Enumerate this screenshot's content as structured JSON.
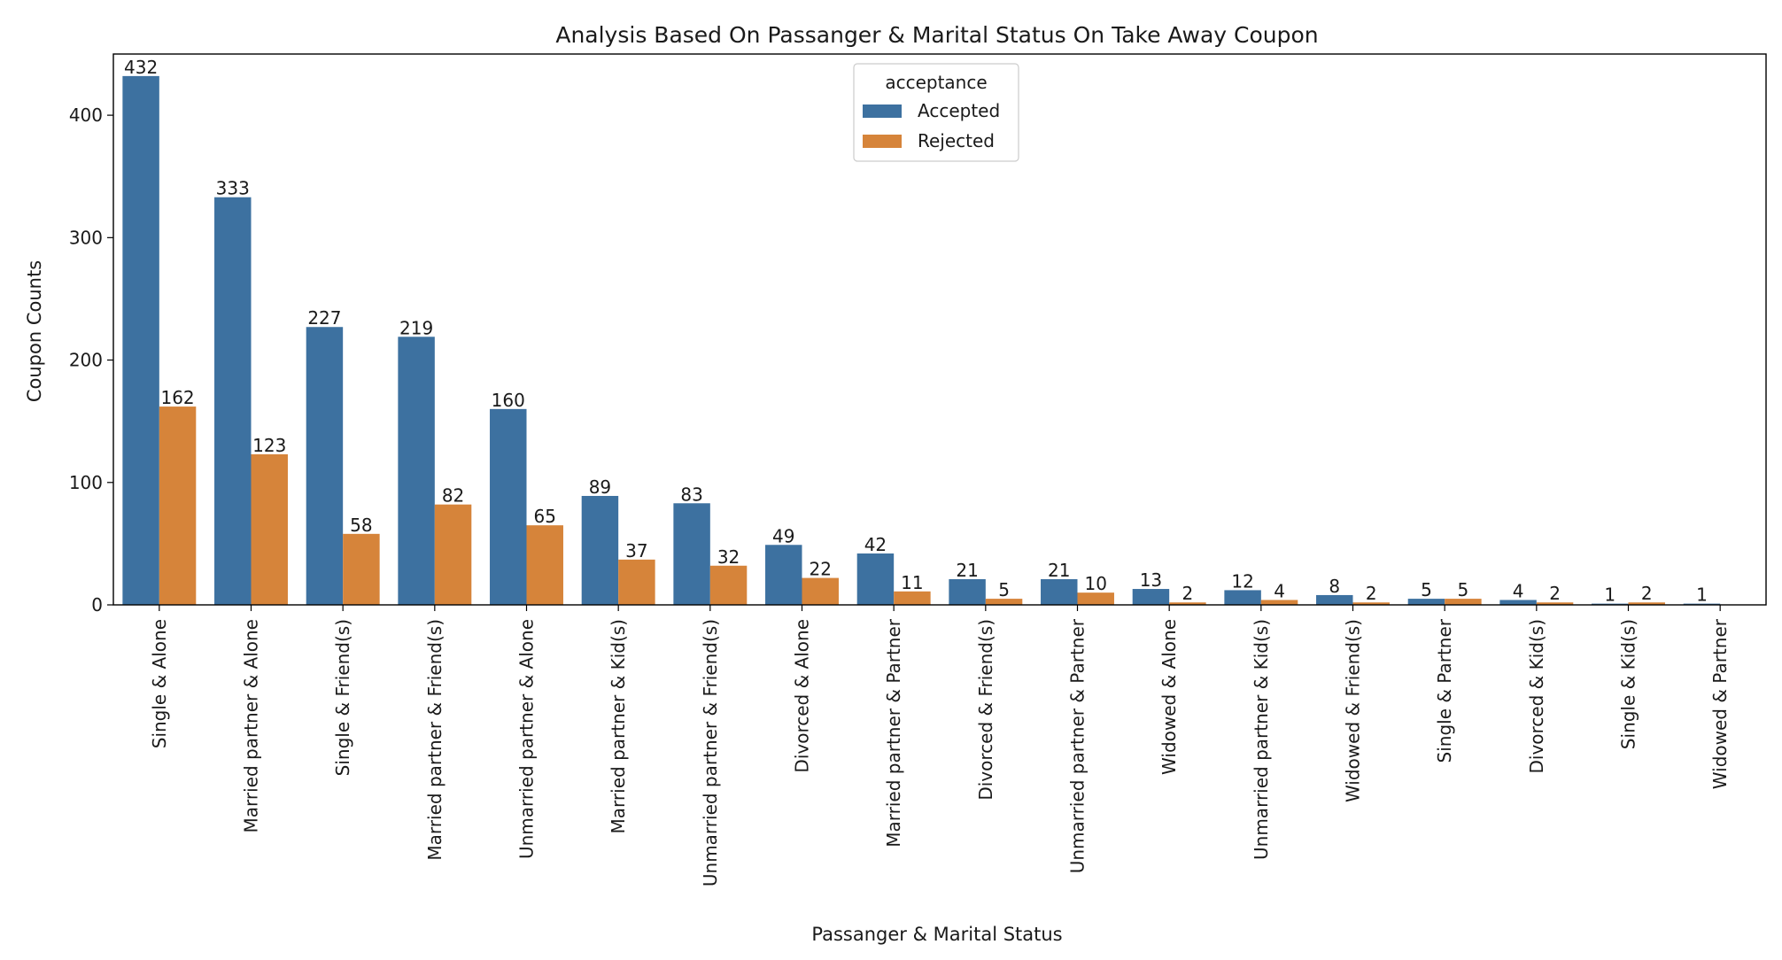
{
  "chart_data": {
    "type": "bar",
    "title": "Analysis Based On Passanger & Marital Status On Take Away Coupon",
    "xlabel": "Passanger & Marital Status",
    "ylabel": "Coupon Counts",
    "ylim": [
      0,
      450
    ],
    "yticks": [
      0,
      100,
      200,
      300,
      400
    ],
    "grid": false,
    "legend": {
      "title": "acceptance",
      "placement": "top-center"
    },
    "categories": [
      "Single & Alone",
      "Married partner & Alone",
      "Single & Friend(s)",
      "Married partner & Friend(s)",
      "Unmarried partner & Alone",
      "Married partner & Kid(s)",
      "Unmarried partner & Friend(s)",
      "Divorced & Alone",
      "Married partner & Partner",
      "Divorced & Friend(s)",
      "Unmarried partner & Partner",
      "Widowed & Alone",
      "Unmarried partner & Kid(s)",
      "Widowed & Friend(s)",
      "Single & Partner",
      "Divorced & Kid(s)",
      "Single & Kid(s)",
      "Widowed & Partner"
    ],
    "series": [
      {
        "name": "Accepted",
        "color": "#3d71a0",
        "values": [
          432,
          333,
          227,
          219,
          160,
          89,
          83,
          49,
          42,
          21,
          21,
          13,
          12,
          8,
          5,
          4,
          1,
          1
        ]
      },
      {
        "name": "Rejected",
        "color": "#d6843a",
        "values": [
          162,
          123,
          58,
          82,
          65,
          37,
          32,
          22,
          11,
          5,
          10,
          2,
          4,
          2,
          5,
          2,
          2,
          null
        ]
      }
    ]
  }
}
